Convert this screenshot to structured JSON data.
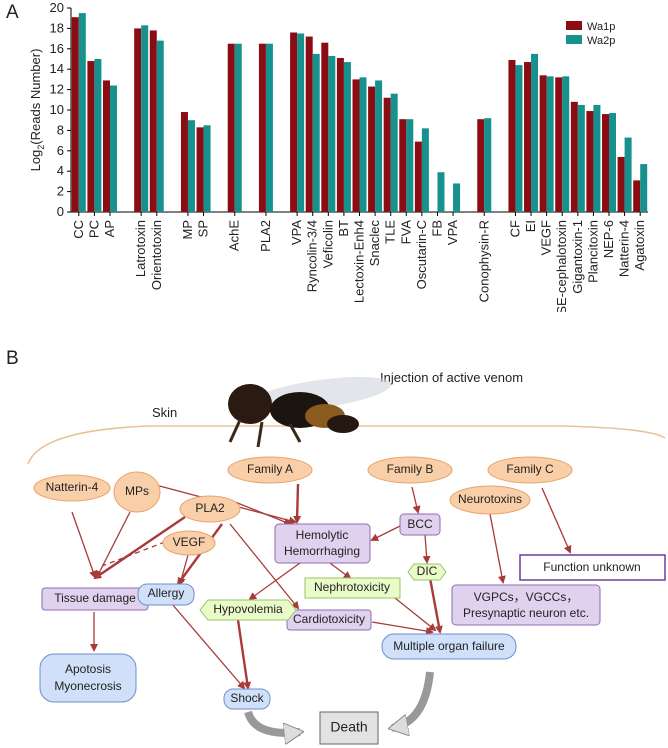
{
  "panel_a_label": "A",
  "chart_data": {
    "type": "bar",
    "ylabel": [
      "Log",
      "2",
      "(Reads Number)"
    ],
    "categories": [
      "CC",
      "PC",
      "AP",
      null,
      "Latrotoxin",
      "Orientotoxin",
      null,
      "MP",
      "SP",
      null,
      "AchE",
      null,
      "PLA2",
      null,
      "VPA",
      "Ryncolin-3/4",
      "Veficolin",
      "BT",
      "Lectoxin-Enh4",
      "Snaclec",
      "TLE",
      "FVA",
      "Oscutarin-C",
      "FB",
      "VPA",
      null,
      "Conophysin-R",
      null,
      "CF",
      "EI",
      "VEGF",
      "SE-cephalotoxin",
      "Gigantoxin-1",
      "Plancitoxin",
      "NEP-6",
      "Natterin-4",
      "Agatoxin"
    ],
    "series": [
      {
        "name": "Wa1p",
        "color": "#8b0d13",
        "values": [
          19.1,
          14.8,
          12.9,
          null,
          18.0,
          17.8,
          null,
          9.8,
          8.3,
          null,
          16.5,
          null,
          16.5,
          null,
          17.6,
          17.2,
          16.6,
          15.1,
          13.0,
          12.3,
          11.2,
          9.1,
          6.9,
          null,
          null,
          null,
          9.1,
          null,
          14.9,
          14.7,
          13.4,
          13.2,
          10.8,
          9.9,
          9.6,
          5.4,
          3.1
        ]
      },
      {
        "name": "Wa2p",
        "color": "#17918e",
        "values": [
          19.5,
          15.0,
          12.4,
          null,
          18.3,
          16.8,
          null,
          9.0,
          8.5,
          null,
          16.5,
          null,
          16.5,
          null,
          17.5,
          15.5,
          15.3,
          14.7,
          13.2,
          12.9,
          11.6,
          9.1,
          8.2,
          3.9,
          2.8,
          null,
          9.2,
          null,
          14.4,
          15.5,
          13.3,
          13.3,
          10.5,
          10.5,
          9.7,
          7.3,
          4.7
        ]
      }
    ],
    "ylim": [
      0,
      20
    ],
    "yticks": [
      0,
      2,
      4,
      6,
      8,
      10,
      12,
      14,
      16,
      18,
      20
    ],
    "legend": "upper right"
  },
  "diagram": {
    "panel_label": "B",
    "skin": "Skin",
    "injection": "Injection of active venom",
    "nodes": [
      "Family A",
      "Family B",
      "Family C",
      "Natterin-4",
      "MPs",
      "PLA2",
      "VEGF",
      "Neurotoxins",
      [
        "Hemolytic",
        "Hemorrhaging"
      ],
      "BCC",
      "DIC",
      "Nephrotoxicity",
      "Cardiotoxicity",
      "Tissue damage",
      "Allergy",
      "Hypovolemia",
      "Function unknown",
      [
        "VGPCs，VGCCs，",
        "Presynaptic neuron etc."
      ],
      [
        "Apotosis",
        "Myonecrosis"
      ],
      "Shock",
      "Multiple organ failure",
      "Death"
    ]
  }
}
